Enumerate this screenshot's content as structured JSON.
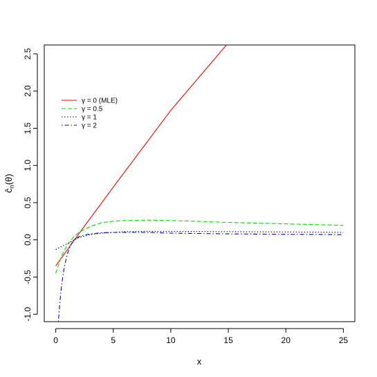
{
  "chart_data": {
    "type": "line",
    "title": "",
    "xlabel": "x",
    "ylabel_parts": {
      "base": "ĉ",
      "sub": "n",
      "arg": "(θ)"
    },
    "xlim": [
      -1,
      26
    ],
    "ylim": [
      -1.1,
      2.62
    ],
    "xticks": [
      0,
      5,
      10,
      15,
      20,
      25
    ],
    "yticks": [
      -1.0,
      -0.5,
      0.0,
      0.5,
      1.0,
      1.5,
      2.0,
      2.5
    ],
    "ytick_labels": [
      "-1.0",
      "-0.5",
      "0.0",
      "0.5",
      "1.0",
      "1.5",
      "2.0",
      "2.5"
    ],
    "grid": false,
    "legend_position": "top-left",
    "series": [
      {
        "name": "γ = 0 (MLE)",
        "color": "#ff0000",
        "dash": "solid",
        "x": [
          0,
          2,
          5,
          10,
          15,
          15.2
        ],
        "y": [
          -0.35,
          0.08,
          0.71,
          1.74,
          2.65,
          2.69
        ]
      },
      {
        "name": "γ = 0.5",
        "color": "#00dd00",
        "dash": "dashed",
        "x": [
          0,
          0.5,
          1,
          1.5,
          2,
          3,
          4,
          5,
          6,
          8,
          10,
          12,
          15,
          20,
          25
        ],
        "y": [
          -0.45,
          -0.22,
          -0.07,
          0.03,
          0.1,
          0.18,
          0.23,
          0.25,
          0.26,
          0.265,
          0.26,
          0.25,
          0.235,
          0.215,
          0.195
        ]
      },
      {
        "name": "γ = 1",
        "color": "#000000",
        "dash": "dotted",
        "x": [
          0,
          0.5,
          1,
          1.5,
          2,
          3,
          4,
          5,
          6,
          8,
          10,
          15,
          20,
          25
        ],
        "y": [
          -0.13,
          -0.09,
          -0.05,
          -0.01,
          0.03,
          0.07,
          0.09,
          0.1,
          0.11,
          0.115,
          0.115,
          0.11,
          0.105,
          0.1
        ]
      },
      {
        "name": "γ = 2",
        "color": "#0000cc",
        "dash": "dotdash",
        "x": [
          0.22,
          0.35,
          0.5,
          0.7,
          1.0,
          1.3,
          1.6,
          2.0,
          2.5,
          3,
          4,
          5,
          6,
          8,
          10,
          15,
          20,
          25
        ],
        "y": [
          -1.1,
          -0.85,
          -0.62,
          -0.4,
          -0.19,
          -0.07,
          0.0,
          0.04,
          0.065,
          0.08,
          0.095,
          0.1,
          0.1,
          0.1,
          0.09,
          0.08,
          0.075,
          0.07
        ]
      }
    ]
  }
}
